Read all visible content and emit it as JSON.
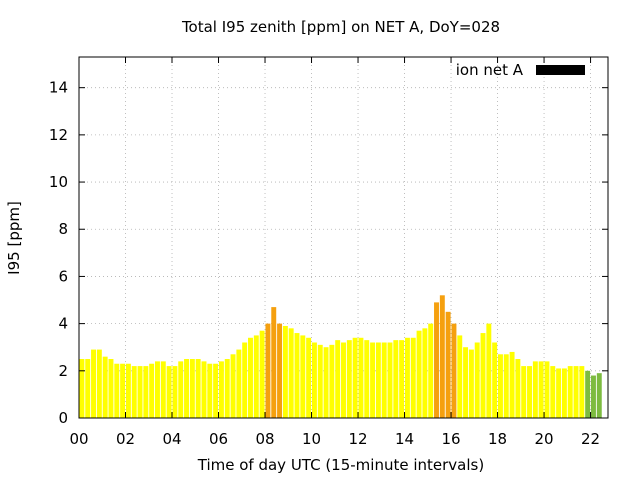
{
  "chart_data": {
    "type": "bar",
    "title": "Total I95 zenith [ppm] on NET A, DoY=028",
    "xlabel": "Time of day UTC (15-minute intervals)",
    "ylabel": "I95 [ppm]",
    "xlim": [
      0,
      22.75
    ],
    "ylim": [
      0,
      15.3
    ],
    "x_ticks": [
      {
        "label": "00",
        "value": 0
      },
      {
        "label": "02",
        "value": 2
      },
      {
        "label": "04",
        "value": 4
      },
      {
        "label": "06",
        "value": 6
      },
      {
        "label": "08",
        "value": 8
      },
      {
        "label": "10",
        "value": 10
      },
      {
        "label": "12",
        "value": 12
      },
      {
        "label": "14",
        "value": 14
      },
      {
        "label": "16",
        "value": 16
      },
      {
        "label": "18",
        "value": 18
      },
      {
        "label": "20",
        "value": 20
      },
      {
        "label": "22",
        "value": 22
      }
    ],
    "y_ticks": [
      0,
      2,
      4,
      6,
      8,
      10,
      12,
      14
    ],
    "grid": true,
    "legend": {
      "label": "ion net A",
      "color": "#000000",
      "placement": "top-right"
    },
    "colors": {
      "low": "#ffff00",
      "mid": "#f5a00f",
      "nodata": "#7dbb40"
    },
    "series": [
      {
        "name": "ion net A",
        "interval_hours": 0.25,
        "start_hour": 0,
        "values": [
          2.5,
          2.5,
          2.9,
          2.9,
          2.6,
          2.5,
          2.3,
          2.3,
          2.3,
          2.2,
          2.2,
          2.2,
          2.3,
          2.4,
          2.4,
          2.2,
          2.2,
          2.4,
          2.5,
          2.5,
          2.5,
          2.4,
          2.3,
          2.3,
          2.4,
          2.5,
          2.7,
          2.9,
          3.2,
          3.4,
          3.5,
          3.7,
          4.0,
          4.7,
          4.0,
          3.9,
          3.8,
          3.6,
          3.5,
          3.4,
          3.2,
          3.1,
          3.0,
          3.1,
          3.3,
          3.2,
          3.3,
          3.4,
          3.4,
          3.3,
          3.2,
          3.2,
          3.2,
          3.2,
          3.3,
          3.3,
          3.4,
          3.4,
          3.7,
          3.8,
          4.0,
          4.9,
          5.2,
          4.5,
          4.0,
          3.5,
          3.0,
          2.9,
          3.2,
          3.6,
          4.0,
          3.2,
          2.7,
          2.7,
          2.8,
          2.5,
          2.2,
          2.2,
          2.4,
          2.4,
          2.4,
          2.2,
          2.1,
          2.1,
          2.2,
          2.2,
          2.2,
          2.0,
          1.8,
          1.9
        ],
        "categories": [
          "low",
          "low",
          "low",
          "low",
          "low",
          "low",
          "low",
          "low",
          "low",
          "low",
          "low",
          "low",
          "low",
          "low",
          "low",
          "low",
          "low",
          "low",
          "low",
          "low",
          "low",
          "low",
          "low",
          "low",
          "low",
          "low",
          "low",
          "low",
          "low",
          "low",
          "low",
          "low",
          "mid",
          "mid",
          "mid",
          "low",
          "low",
          "low",
          "low",
          "low",
          "low",
          "low",
          "low",
          "low",
          "low",
          "low",
          "low",
          "low",
          "low",
          "low",
          "low",
          "low",
          "low",
          "low",
          "low",
          "low",
          "low",
          "low",
          "low",
          "low",
          "low",
          "mid",
          "mid",
          "mid",
          "mid",
          "low",
          "low",
          "low",
          "low",
          "low",
          "low",
          "low",
          "low",
          "low",
          "low",
          "low",
          "low",
          "low",
          "low",
          "low",
          "low",
          "low",
          "low",
          "low",
          "low",
          "low",
          "low",
          "nodata",
          "nodata",
          "nodata"
        ]
      }
    ]
  }
}
